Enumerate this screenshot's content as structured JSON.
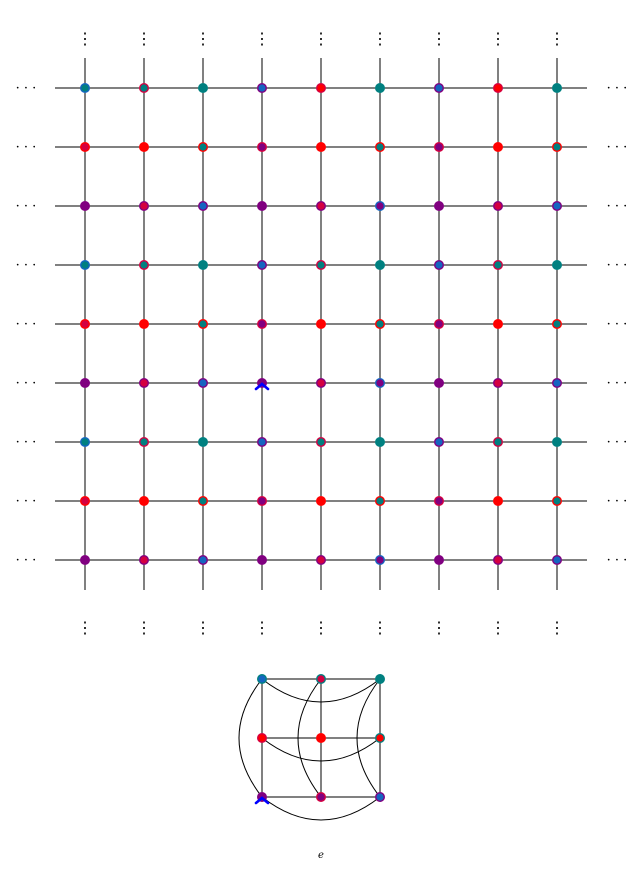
{
  "colors": {
    "teal": "#008080",
    "red": "#ff0000",
    "purple": "#800080",
    "blue": "#1565c0",
    "crimson": "#d40040",
    "lines": "#000000",
    "marker": "#0000ff"
  },
  "grid": {
    "dots_h": "· · ·",
    "dots_v": "⋮",
    "cols": 9,
    "rows": 9,
    "node_colors": [
      [
        [
          "blue",
          "teal"
        ],
        [
          "crimson",
          "teal"
        ],
        [
          "teal",
          "teal"
        ],
        [
          "purple",
          "blue"
        ],
        [
          "crimson",
          "red"
        ],
        [
          "teal",
          "teal"
        ],
        [
          "purple",
          "blue"
        ],
        [
          "crimson",
          "red"
        ],
        [
          "teal",
          "teal"
        ]
      ],
      [
        [
          "red",
          "crimson"
        ],
        [
          "red",
          "red"
        ],
        [
          "red",
          "teal"
        ],
        [
          "crimson",
          "purple"
        ],
        [
          "red",
          "red"
        ],
        [
          "red",
          "teal"
        ],
        [
          "crimson",
          "purple"
        ],
        [
          "red",
          "red"
        ],
        [
          "red",
          "teal"
        ]
      ],
      [
        [
          "purple",
          "purple"
        ],
        [
          "purple",
          "crimson"
        ],
        [
          "purple",
          "blue"
        ],
        [
          "purple",
          "purple"
        ],
        [
          "purple",
          "crimson"
        ],
        [
          "blue",
          "purple"
        ],
        [
          "purple",
          "purple"
        ],
        [
          "purple",
          "crimson"
        ],
        [
          "purple",
          "blue"
        ]
      ],
      [
        [
          "blue",
          "teal"
        ],
        [
          "crimson",
          "teal"
        ],
        [
          "teal",
          "teal"
        ],
        [
          "purple",
          "blue"
        ],
        [
          "crimson",
          "teal"
        ],
        [
          "teal",
          "teal"
        ],
        [
          "purple",
          "blue"
        ],
        [
          "crimson",
          "teal"
        ],
        [
          "teal",
          "teal"
        ]
      ],
      [
        [
          "red",
          "crimson"
        ],
        [
          "red",
          "red"
        ],
        [
          "red",
          "teal"
        ],
        [
          "crimson",
          "purple"
        ],
        [
          "red",
          "red"
        ],
        [
          "red",
          "teal"
        ],
        [
          "crimson",
          "purple"
        ],
        [
          "red",
          "red"
        ],
        [
          "red",
          "teal"
        ]
      ],
      [
        [
          "purple",
          "purple"
        ],
        [
          "purple",
          "crimson"
        ],
        [
          "purple",
          "blue"
        ],
        [
          "purple",
          "purple"
        ],
        [
          "purple",
          "crimson"
        ],
        [
          "blue",
          "purple"
        ],
        [
          "purple",
          "purple"
        ],
        [
          "purple",
          "crimson"
        ],
        [
          "purple",
          "blue"
        ]
      ],
      [
        [
          "blue",
          "teal"
        ],
        [
          "crimson",
          "teal"
        ],
        [
          "teal",
          "teal"
        ],
        [
          "purple",
          "blue"
        ],
        [
          "crimson",
          "teal"
        ],
        [
          "teal",
          "teal"
        ],
        [
          "purple",
          "blue"
        ],
        [
          "crimson",
          "teal"
        ],
        [
          "teal",
          "teal"
        ]
      ],
      [
        [
          "red",
          "crimson"
        ],
        [
          "red",
          "red"
        ],
        [
          "red",
          "teal"
        ],
        [
          "crimson",
          "purple"
        ],
        [
          "red",
          "red"
        ],
        [
          "red",
          "teal"
        ],
        [
          "crimson",
          "purple"
        ],
        [
          "red",
          "red"
        ],
        [
          "red",
          "teal"
        ]
      ],
      [
        [
          "purple",
          "purple"
        ],
        [
          "purple",
          "crimson"
        ],
        [
          "purple",
          "blue"
        ],
        [
          "purple",
          "purple"
        ],
        [
          "purple",
          "crimson"
        ],
        [
          "blue",
          "purple"
        ],
        [
          "purple",
          "purple"
        ],
        [
          "purple",
          "crimson"
        ],
        [
          "purple",
          "blue"
        ]
      ]
    ],
    "marker_node": [
      5,
      3
    ]
  },
  "quotient": {
    "rows": 3,
    "cols": 3,
    "node_colors": [
      [
        [
          "teal",
          "blue"
        ],
        [
          "teal",
          "crimson"
        ],
        [
          "teal",
          "teal"
        ]
      ],
      [
        [
          "crimson",
          "red"
        ],
        [
          "red",
          "red"
        ],
        [
          "teal",
          "red"
        ]
      ],
      [
        [
          "purple",
          "purple"
        ],
        [
          "crimson",
          "purple"
        ],
        [
          "purple",
          "blue"
        ]
      ]
    ],
    "marker_node": [
      2,
      0
    ],
    "label": "e"
  }
}
